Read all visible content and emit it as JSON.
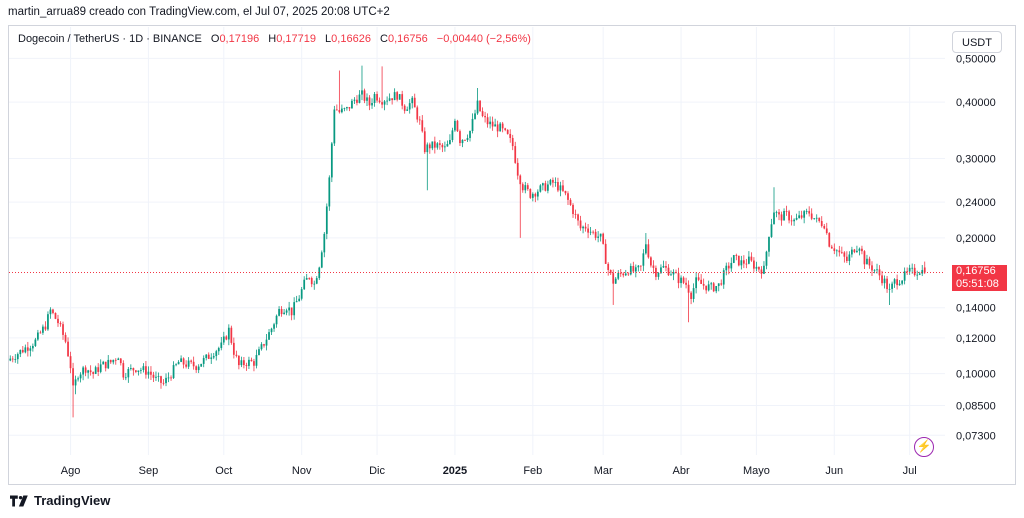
{
  "caption": "martin_arrua89 creado con TradingView.com, el Jul 07, 2025 20:08 UTC+2",
  "legend": {
    "symbol": "Dogecoin / TetherUS · 1D · BINANCE",
    "o_label": "O",
    "o_value": "0,17196",
    "h_label": "H",
    "h_value": "0,17719",
    "l_label": "L",
    "l_value": "0,16626",
    "c_label": "C",
    "c_value": "0,16756",
    "change": "−0,00440 (−2,56%)"
  },
  "currency_button": "USDT",
  "last_price": "0,16756",
  "countdown": "05:51:08",
  "footer_brand": "TradingView",
  "colors": {
    "up": "#089981",
    "down": "#f23645",
    "grid": "#f0f3fa",
    "axis_text": "#131722",
    "price_line": "#f23645"
  },
  "chart_data": {
    "type": "candlestick",
    "symbol": "DOGEUSDT",
    "scale": "log",
    "ylim": [
      0.066,
      0.53
    ],
    "y_ticks": [
      {
        "value": 0.5,
        "label": "0,50000"
      },
      {
        "value": 0.4,
        "label": "0,40000"
      },
      {
        "value": 0.3,
        "label": "0,30000"
      },
      {
        "value": 0.24,
        "label": "0,24000"
      },
      {
        "value": 0.2,
        "label": "0,20000"
      },
      {
        "value": 0.14,
        "label": "0,14000"
      },
      {
        "value": 0.12,
        "label": "0,12000"
      },
      {
        "value": 0.1,
        "label": "0,10000"
      },
      {
        "value": 0.085,
        "label": "0,08500"
      },
      {
        "value": 0.073,
        "label": "0,07300"
      }
    ],
    "x_ticks": [
      {
        "label": "Ago",
        "bold": false
      },
      {
        "label": "Sep",
        "bold": false
      },
      {
        "label": "Oct",
        "bold": false
      },
      {
        "label": "Nov",
        "bold": false
      },
      {
        "label": "Dic",
        "bold": false
      },
      {
        "label": "2025",
        "bold": true
      },
      {
        "label": "Feb",
        "bold": false
      },
      {
        "label": "Mar",
        "bold": false
      },
      {
        "label": "Abr",
        "bold": false
      },
      {
        "label": "Mayo",
        "bold": false
      },
      {
        "label": "Jun",
        "bold": false
      },
      {
        "label": "Jul",
        "bold": false
      }
    ],
    "x_tick_days": [
      24,
      55,
      85,
      116,
      146,
      177,
      208,
      236,
      267,
      297,
      328,
      358
    ],
    "first_day_label": "2024-07-08",
    "last_close": 0.16756,
    "close_path": [
      [
        0,
        0.108
      ],
      [
        5,
        0.113
      ],
      [
        10,
        0.118
      ],
      [
        14,
        0.128
      ],
      [
        16,
        0.138
      ],
      [
        19,
        0.13
      ],
      [
        22,
        0.118
      ],
      [
        24,
        0.104
      ],
      [
        25,
        0.092
      ],
      [
        27,
        0.1
      ],
      [
        30,
        0.103
      ],
      [
        33,
        0.1
      ],
      [
        36,
        0.104
      ],
      [
        40,
        0.106
      ],
      [
        43,
        0.11
      ],
      [
        45,
        0.1
      ],
      [
        50,
        0.103
      ],
      [
        55,
        0.101
      ],
      [
        58,
        0.097
      ],
      [
        61,
        0.095
      ],
      [
        64,
        0.1
      ],
      [
        67,
        0.106
      ],
      [
        70,
        0.105
      ],
      [
        74,
        0.104
      ],
      [
        78,
        0.108
      ],
      [
        81,
        0.112
      ],
      [
        84,
        0.115
      ],
      [
        87,
        0.125
      ],
      [
        89,
        0.112
      ],
      [
        91,
        0.104
      ],
      [
        94,
        0.106
      ],
      [
        97,
        0.106
      ],
      [
        100,
        0.114
      ],
      [
        104,
        0.126
      ],
      [
        107,
        0.138
      ],
      [
        110,
        0.141
      ],
      [
        112,
        0.137
      ],
      [
        115,
        0.148
      ],
      [
        117,
        0.158
      ],
      [
        119,
        0.165
      ],
      [
        121,
        0.158
      ],
      [
        123,
        0.175
      ],
      [
        125,
        0.205
      ],
      [
        127,
        0.27
      ],
      [
        129,
        0.39
      ],
      [
        131,
        0.38
      ],
      [
        134,
        0.385
      ],
      [
        137,
        0.405
      ],
      [
        140,
        0.415
      ],
      [
        143,
        0.395
      ],
      [
        145,
        0.415
      ],
      [
        148,
        0.405
      ],
      [
        151,
        0.41
      ],
      [
        154,
        0.415
      ],
      [
        157,
        0.39
      ],
      [
        160,
        0.4
      ],
      [
        163,
        0.36
      ],
      [
        165,
        0.315
      ],
      [
        167,
        0.32
      ],
      [
        170,
        0.32
      ],
      [
        173,
        0.315
      ],
      [
        175,
        0.325
      ],
      [
        177,
        0.37
      ],
      [
        179,
        0.33
      ],
      [
        181,
        0.335
      ],
      [
        183,
        0.345
      ],
      [
        186,
        0.395
      ],
      [
        188,
        0.37
      ],
      [
        190,
        0.36
      ],
      [
        192,
        0.355
      ],
      [
        195,
        0.35
      ],
      [
        198,
        0.335
      ],
      [
        200,
        0.32
      ],
      [
        202,
        0.28
      ],
      [
        204,
        0.26
      ],
      [
        207,
        0.25
      ],
      [
        210,
        0.255
      ],
      [
        213,
        0.26
      ],
      [
        216,
        0.265
      ],
      [
        218,
        0.26
      ],
      [
        221,
        0.248
      ],
      [
        224,
        0.23
      ],
      [
        227,
        0.21
      ],
      [
        229,
        0.212
      ],
      [
        232,
        0.205
      ],
      [
        235,
        0.2
      ],
      [
        238,
        0.17
      ],
      [
        240,
        0.16
      ],
      [
        242,
        0.165
      ],
      [
        246,
        0.17
      ],
      [
        249,
        0.168
      ],
      [
        251,
        0.172
      ],
      [
        253,
        0.195
      ],
      [
        255,
        0.175
      ],
      [
        257,
        0.168
      ],
      [
        260,
        0.172
      ],
      [
        263,
        0.168
      ],
      [
        266,
        0.162
      ],
      [
        269,
        0.158
      ],
      [
        271,
        0.15
      ],
      [
        273,
        0.16
      ],
      [
        276,
        0.157
      ],
      [
        279,
        0.155
      ],
      [
        282,
        0.157
      ],
      [
        285,
        0.17
      ],
      [
        288,
        0.18
      ],
      [
        291,
        0.176
      ],
      [
        294,
        0.178
      ],
      [
        297,
        0.172
      ],
      [
        300,
        0.17
      ],
      [
        302,
        0.205
      ],
      [
        304,
        0.23
      ],
      [
        306,
        0.222
      ],
      [
        309,
        0.225
      ],
      [
        312,
        0.218
      ],
      [
        315,
        0.223
      ],
      [
        318,
        0.228
      ],
      [
        321,
        0.218
      ],
      [
        324,
        0.215
      ],
      [
        326,
        0.195
      ],
      [
        328,
        0.19
      ],
      [
        330,
        0.185
      ],
      [
        333,
        0.178
      ],
      [
        336,
        0.19
      ],
      [
        338,
        0.193
      ],
      [
        340,
        0.178
      ],
      [
        343,
        0.172
      ],
      [
        345,
        0.168
      ],
      [
        348,
        0.16
      ],
      [
        350,
        0.152
      ],
      [
        352,
        0.16
      ],
      [
        355,
        0.163
      ],
      [
        358,
        0.168
      ],
      [
        360,
        0.168
      ],
      [
        362,
        0.17
      ],
      [
        364,
        0.16756
      ]
    ],
    "notable_wicks": [
      {
        "day": 25,
        "low": 0.08
      },
      {
        "day": 26,
        "low": 0.09
      },
      {
        "day": 131,
        "high": 0.47
      },
      {
        "day": 140,
        "high": 0.482
      },
      {
        "day": 148,
        "high": 0.48
      },
      {
        "day": 166,
        "low": 0.255
      },
      {
        "day": 186,
        "high": 0.43
      },
      {
        "day": 203,
        "low": 0.2
      },
      {
        "day": 240,
        "low": 0.142
      },
      {
        "day": 253,
        "high": 0.205
      },
      {
        "day": 270,
        "low": 0.13
      },
      {
        "day": 304,
        "high": 0.259
      },
      {
        "day": 350,
        "low": 0.142
      }
    ]
  }
}
